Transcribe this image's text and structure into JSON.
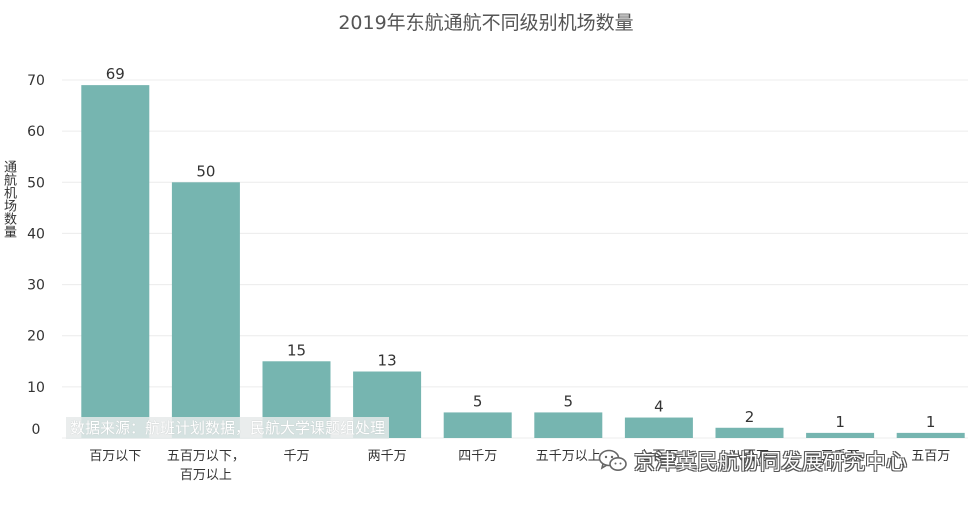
{
  "chart_data": {
    "type": "bar",
    "title": "2019年东航通航不同级别机场数量",
    "ylabel": "通航机场数量",
    "xlabel": "",
    "ylim": [
      0,
      70
    ],
    "yticks": [
      0,
      10,
      20,
      30,
      40,
      50,
      60,
      70
    ],
    "categories": [
      "百万以下",
      "五百万以下，百万以上",
      "千万",
      "两千万",
      "四千万",
      "五千万以上",
      "七百万",
      "八百万",
      "三千万",
      "五百万"
    ],
    "category_display": [
      [
        "百万以下"
      ],
      [
        "五百万以下，",
        "百万以上"
      ],
      [
        "千万"
      ],
      [
        "两千万"
      ],
      [
        "四千万"
      ],
      [
        "五千万以上"
      ],
      [
        "七百万"
      ],
      [
        "八百万"
      ],
      [
        "三千万"
      ],
      [
        "五百万"
      ]
    ],
    "values": [
      69,
      50,
      15,
      13,
      5,
      5,
      4,
      2,
      1,
      1
    ],
    "color": "#76b5b0",
    "grid": true
  },
  "source_note": "数据来源：航班计划数据，民航大学课题组处理",
  "watermark": {
    "text": "京津冀民航协同发展研究中心",
    "icon": "wechat-icon"
  }
}
